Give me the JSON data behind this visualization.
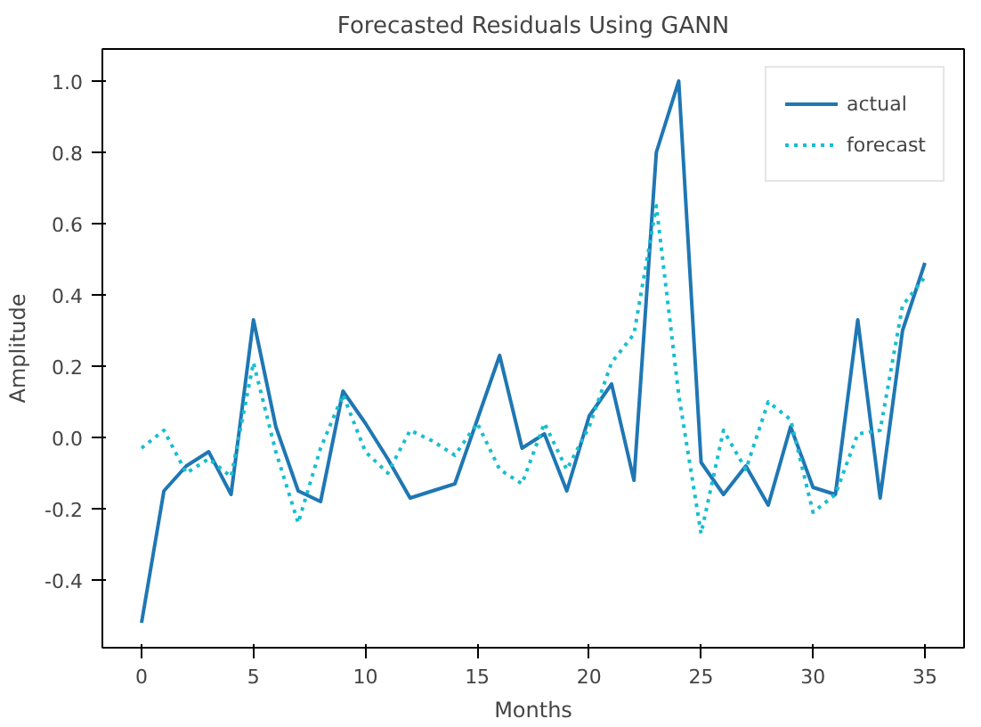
{
  "chart_data": {
    "type": "line",
    "title": "Forecasted Residuals Using GANN",
    "xlabel": "Months",
    "ylabel": "Amplitude",
    "x": [
      0,
      1,
      2,
      3,
      4,
      5,
      6,
      7,
      8,
      9,
      10,
      11,
      12,
      13,
      14,
      15,
      16,
      17,
      18,
      19,
      20,
      21,
      22,
      23,
      24,
      25,
      26,
      27,
      28,
      29,
      30,
      31,
      32,
      33,
      34,
      35
    ],
    "series": [
      {
        "name": "actual",
        "color": "#1f77b4",
        "line_style": "solid",
        "values": [
          -0.52,
          -0.15,
          -0.08,
          -0.04,
          -0.16,
          0.33,
          0.03,
          -0.15,
          -0.18,
          0.13,
          0.04,
          -0.06,
          -0.17,
          -0.15,
          -0.13,
          0.05,
          0.23,
          -0.03,
          0.01,
          -0.15,
          0.06,
          0.15,
          -0.12,
          0.8,
          1.0,
          -0.07,
          -0.16,
          -0.08,
          -0.19,
          0.03,
          -0.14,
          -0.16,
          0.33,
          -0.17,
          0.3,
          0.49
        ]
      },
      {
        "name": "forecast",
        "color": "#17becf",
        "line_style": "dotted",
        "values": [
          -0.03,
          0.02,
          -0.1,
          -0.06,
          -0.11,
          0.21,
          -0.04,
          -0.24,
          -0.03,
          0.12,
          -0.04,
          -0.1,
          0.02,
          -0.01,
          -0.05,
          0.04,
          -0.09,
          -0.13,
          0.04,
          -0.09,
          0.03,
          0.21,
          0.29,
          0.65,
          0.12,
          -0.27,
          0.02,
          -0.09,
          0.1,
          0.05,
          -0.21,
          -0.16,
          0.01,
          0.02,
          0.37,
          0.45
        ]
      }
    ],
    "xlim": [
      -1.75,
      36.75
    ],
    "ylim": [
      -0.59,
      1.09
    ],
    "xticks": [
      0,
      5,
      10,
      15,
      20,
      25,
      30,
      35
    ],
    "yticks": [
      {
        "value": -0.4,
        "label": "-0.4"
      },
      {
        "value": -0.2,
        "label": "-0.2"
      },
      {
        "value": 0,
        "label": "0.0"
      },
      {
        "value": 0.2,
        "label": "0.2"
      },
      {
        "value": 0.4,
        "label": "0.4"
      },
      {
        "value": 0.6,
        "label": "0.6"
      },
      {
        "value": 0.8,
        "label": "0.8"
      },
      {
        "value": 1.0,
        "label": "1.0"
      }
    ],
    "grid": false,
    "legend": "top right"
  }
}
